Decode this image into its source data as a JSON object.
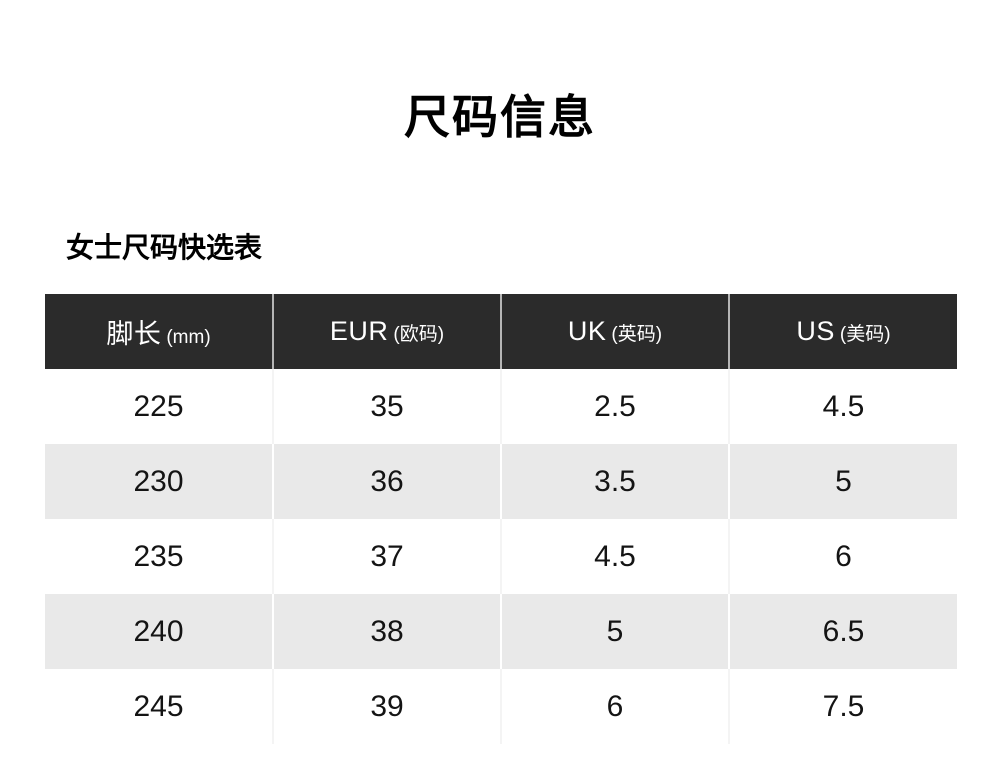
{
  "page": {
    "title": "尺码信息",
    "section_title": "女士尺码快选表"
  },
  "table": {
    "columns": [
      {
        "main": "脚长",
        "sub": "(mm)"
      },
      {
        "main": "EUR",
        "sub": "(欧码)"
      },
      {
        "main": "UK",
        "sub": "(英码)"
      },
      {
        "main": "US",
        "sub": "(美码)"
      }
    ],
    "rows": [
      [
        "225",
        "35",
        "2.5",
        "4.5"
      ],
      [
        "230",
        "36",
        "3.5",
        "5"
      ],
      [
        "235",
        "37",
        "4.5",
        "6"
      ],
      [
        "240",
        "38",
        "5",
        "6.5"
      ],
      [
        "245",
        "39",
        "6",
        "7.5"
      ]
    ]
  },
  "colors": {
    "page_bg": "#ffffff",
    "header_bg": "#2b2b2b",
    "header_text": "#ffffff",
    "row_alt_bg": "#e9e9e9",
    "body_text": "#141414"
  },
  "chart_data": {
    "type": "table",
    "title": "尺码信息",
    "subtitle": "女士尺码快选表",
    "columns": [
      "脚长 (mm)",
      "EUR (欧码)",
      "UK (英码)",
      "US (美码)"
    ],
    "rows": [
      [
        225,
        35,
        2.5,
        4.5
      ],
      [
        230,
        36,
        3.5,
        5
      ],
      [
        235,
        37,
        4.5,
        6
      ],
      [
        240,
        38,
        5,
        6.5
      ],
      [
        245,
        39,
        6,
        7.5
      ]
    ],
    "layout": {
      "header_style": "dark-bar",
      "row_striping": "white / light-gray alternating",
      "alignment": "center"
    }
  }
}
